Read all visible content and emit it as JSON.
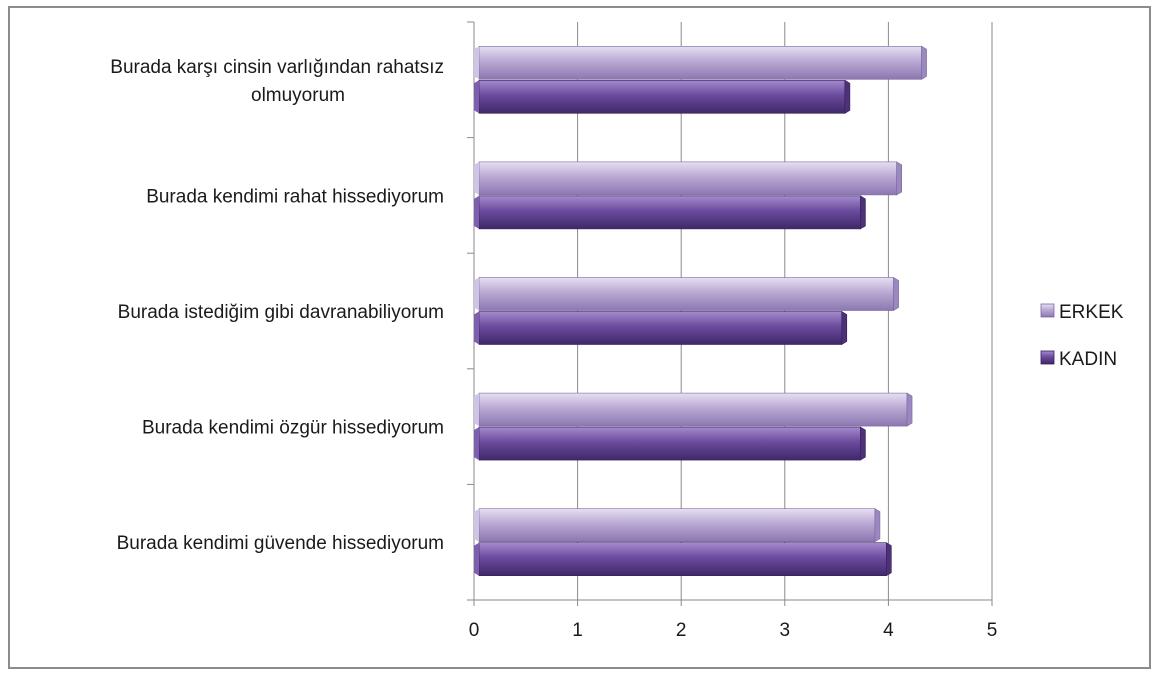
{
  "chart_data": {
    "type": "bar",
    "orientation": "horizontal",
    "categories": [
      "Burada kendimi güvende hissediyorum",
      "Burada kendimi özgür hissediyorum",
      "Burada istediğim gibi davranabiliyorum",
      "Burada kendimi rahat hissediyorum",
      "Burada karşı cinsin varlığından rahatsız olmuyorum"
    ],
    "category_lines": [
      [
        "Burada kendimi güvende hissediyorum"
      ],
      [
        "Burada kendimi özgür hissediyorum"
      ],
      [
        "Burada istediğim gibi davranabiliyorum"
      ],
      [
        "Burada kendimi rahat hissediyorum"
      ],
      [
        "Burada karşı cinsin varlığından rahatsız",
        "olmuyorum"
      ]
    ],
    "series": [
      {
        "name": "ERKEK",
        "values": [
          3.87,
          4.18,
          4.05,
          4.08,
          4.32
        ],
        "color": "#b3a2cf"
      },
      {
        "name": "KADIN",
        "values": [
          3.98,
          3.73,
          3.55,
          3.73,
          3.58
        ],
        "color": "#6a4a9c"
      }
    ],
    "xlim": [
      0,
      5
    ],
    "xticks": [
      "0",
      "1",
      "2",
      "3",
      "4",
      "5"
    ],
    "grid": true,
    "legend_position": "right",
    "title": "",
    "xlabel": "",
    "ylabel": ""
  }
}
